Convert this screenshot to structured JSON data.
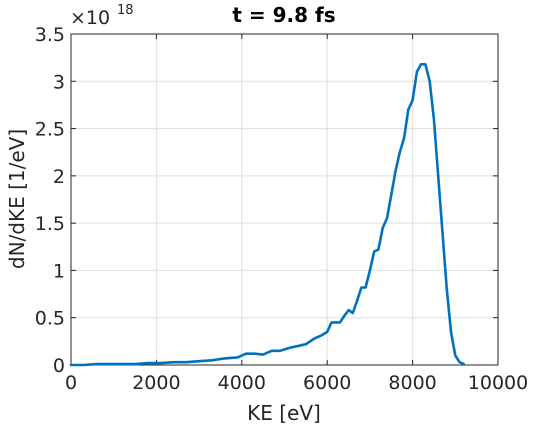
{
  "chart_data": {
    "type": "line",
    "title": "t = 9.8 fs",
    "xlabel": "KE [eV]",
    "ylabel": "dN/dKE [1/eV]",
    "y_multiplier": {
      "base": "×10",
      "exponent": "18",
      "value": 1e+18
    },
    "xlim": [
      0,
      10000
    ],
    "ylim": [
      0,
      3.5
    ],
    "x_ticks": [
      0,
      2000,
      4000,
      6000,
      8000,
      10000
    ],
    "x_tick_labels": [
      "0",
      "2000",
      "4000",
      "6000",
      "8000",
      "10000"
    ],
    "y_ticks": [
      0,
      0.5,
      1,
      1.5,
      2,
      2.5,
      3,
      3.5
    ],
    "y_tick_labels": [
      "0",
      "0.5",
      "1",
      "1.5",
      "2",
      "2.5",
      "3",
      "3.5"
    ],
    "grid": true,
    "series": [
      {
        "color": "#0072BD",
        "x": [
          0,
          300,
          600,
          900,
          1200,
          1500,
          1800,
          2100,
          2400,
          2700,
          3000,
          3300,
          3600,
          3900,
          4100,
          4300,
          4500,
          4700,
          4900,
          5100,
          5300,
          5500,
          5700,
          5850,
          6000,
          6100,
          6200,
          6300,
          6400,
          6500,
          6600,
          6700,
          6800,
          6900,
          7000,
          7100,
          7200,
          7300,
          7400,
          7500,
          7600,
          7700,
          7800,
          7900,
          8000,
          8100,
          8200,
          8300,
          8400,
          8500,
          8600,
          8700,
          8800,
          8900,
          9000,
          9100,
          9200
        ],
        "y": [
          0.0,
          0.0,
          0.01,
          0.01,
          0.01,
          0.01,
          0.02,
          0.02,
          0.03,
          0.03,
          0.04,
          0.05,
          0.07,
          0.08,
          0.12,
          0.12,
          0.11,
          0.15,
          0.15,
          0.18,
          0.2,
          0.22,
          0.28,
          0.31,
          0.35,
          0.45,
          0.45,
          0.45,
          0.52,
          0.58,
          0.55,
          0.68,
          0.82,
          0.82,
          1.0,
          1.2,
          1.22,
          1.45,
          1.55,
          1.8,
          2.05,
          2.25,
          2.4,
          2.7,
          2.8,
          3.1,
          3.18,
          3.18,
          3.0,
          2.6,
          2.0,
          1.4,
          0.8,
          0.35,
          0.1,
          0.03,
          0.01
        ]
      }
    ]
  }
}
